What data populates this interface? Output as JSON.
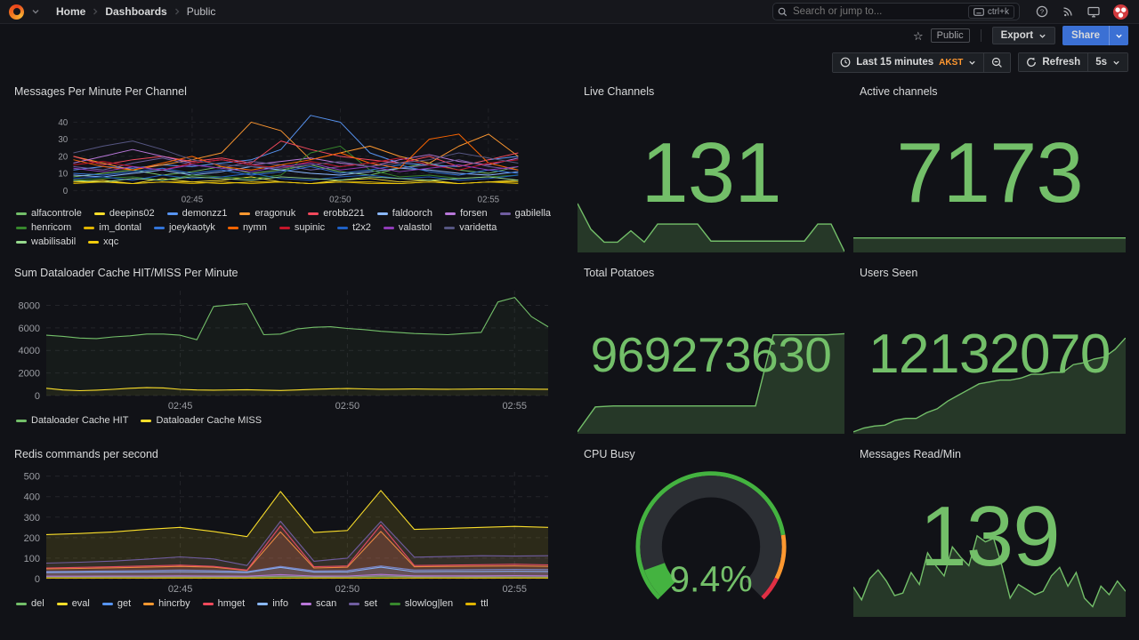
{
  "nav": {
    "breadcrumb": [
      "Home",
      "Dashboards",
      "Public"
    ],
    "search_placeholder": "Search or jump to...",
    "search_shortcut": "ctrl+k"
  },
  "toolbar": {
    "visibility_badge": "Public",
    "export_label": "Export",
    "share_label": "Share"
  },
  "time": {
    "range_label": "Last 15 minutes",
    "timezone": "AKST",
    "refresh_label": "Refresh",
    "interval": "5s"
  },
  "colors": {
    "accent_green": "#73BF69",
    "grid": "rgba(204,204,220,0.10)",
    "axis_text": "#9b9da3"
  },
  "charts": {
    "messages": {
      "type": "line",
      "title": "Messages Per Minute Per Channel",
      "ymax": 48,
      "yticks": [
        0,
        10,
        20,
        30,
        40
      ],
      "fill_opacity": 0,
      "xticks": [
        {
          "f": 0.267,
          "label": "02:45"
        },
        {
          "f": 0.6,
          "label": "02:50"
        },
        {
          "f": 0.933,
          "label": "02:55"
        }
      ],
      "series": [
        {
          "name": "alfacontrole",
          "color": "#73BF69",
          "values": [
            8,
            10,
            12,
            9,
            11,
            14,
            10,
            12,
            15,
            11,
            9,
            13,
            16,
            12,
            10,
            14
          ]
        },
        {
          "name": "deepins02",
          "color": "#FADE2A",
          "values": [
            5,
            6,
            4,
            7,
            5,
            6,
            8,
            5,
            4,
            6,
            7,
            5,
            6,
            4,
            5,
            6
          ]
        },
        {
          "name": "demonzz1",
          "color": "#5794F2",
          "values": [
            12,
            14,
            13,
            15,
            14,
            16,
            18,
            24,
            44,
            40,
            22,
            16,
            15,
            14,
            18,
            20
          ]
        },
        {
          "name": "eragonuk",
          "color": "#FF9830",
          "values": [
            20,
            16,
            12,
            15,
            18,
            22,
            40,
            35,
            18,
            22,
            26,
            20,
            16,
            26,
            33,
            20
          ]
        },
        {
          "name": "erobb221",
          "color": "#F2495C",
          "values": [
            20,
            15,
            18,
            20,
            17,
            19,
            16,
            29,
            24,
            20,
            18,
            16,
            20,
            14,
            18,
            22
          ]
        },
        {
          "name": "faldoorch",
          "color": "#8AB8FF",
          "values": [
            9,
            8,
            10,
            12,
            9,
            11,
            14,
            12,
            10,
            9,
            11,
            13,
            12,
            10,
            9,
            11
          ]
        },
        {
          "name": "forsen",
          "color": "#B877D9",
          "values": [
            16,
            20,
            24,
            20,
            16,
            18,
            15,
            17,
            19,
            16,
            14,
            18,
            21,
            17,
            15,
            19
          ]
        },
        {
          "name": "gabilella",
          "color": "#705DA0",
          "values": [
            14,
            12,
            16,
            19,
            15,
            13,
            17,
            15,
            12,
            14,
            16,
            13,
            15,
            18,
            14,
            12
          ]
        },
        {
          "name": "henricom",
          "color": "#37872D",
          "values": [
            6,
            7,
            8,
            6,
            9,
            8,
            7,
            9,
            22,
            26,
            12,
            8,
            9,
            7,
            8,
            9
          ]
        },
        {
          "name": "im_dontal",
          "color": "#E0B400",
          "values": [
            4,
            5,
            4,
            5,
            4,
            5,
            4,
            5,
            4,
            5,
            4,
            4,
            5,
            4,
            5,
            4
          ]
        },
        {
          "name": "joeykaotyk",
          "color": "#3274D9",
          "values": [
            10,
            9,
            11,
            13,
            10,
            12,
            9,
            11,
            14,
            10,
            12,
            15,
            11,
            9,
            12,
            10
          ]
        },
        {
          "name": "nymn",
          "color": "#FA6400",
          "values": [
            18,
            14,
            12,
            16,
            20,
            14,
            12,
            15,
            18,
            22,
            16,
            13,
            30,
            33,
            16,
            12
          ]
        },
        {
          "name": "supinic",
          "color": "#C4162A",
          "values": [
            15,
            17,
            14,
            12,
            16,
            18,
            15,
            13,
            17,
            14,
            16,
            19,
            15,
            12,
            16,
            18
          ]
        },
        {
          "name": "t2x2",
          "color": "#1F60C4",
          "values": [
            7,
            8,
            6,
            9,
            7,
            8,
            10,
            7,
            6,
            8,
            9,
            7,
            8,
            6,
            7,
            9
          ]
        },
        {
          "name": "valastol",
          "color": "#8F3BB8",
          "values": [
            13,
            11,
            14,
            12,
            15,
            13,
            11,
            14,
            16,
            12,
            14,
            11,
            13,
            15,
            12,
            14
          ]
        },
        {
          "name": "varidetta",
          "color": "#565682",
          "values": [
            22,
            26,
            29,
            24,
            18,
            15,
            14,
            13,
            15,
            17,
            14,
            16,
            18,
            22,
            19,
            16
          ]
        },
        {
          "name": "wabilisabil",
          "color": "#96D98D",
          "values": [
            6,
            5,
            7,
            6,
            8,
            7,
            6,
            8,
            7,
            6,
            8,
            7,
            6,
            7,
            8,
            6
          ]
        },
        {
          "name": "xqc",
          "color": "#F2CC0C",
          "values": [
            5,
            5,
            4,
            5,
            5,
            4,
            5,
            5,
            4,
            5,
            5,
            4,
            5,
            4,
            5,
            5
          ]
        }
      ]
    },
    "dataloader": {
      "type": "line",
      "title": "Sum Dataloader Cache HIT/MISS Per Minute",
      "ymax": 9300,
      "yticks": [
        0,
        2000,
        4000,
        6000,
        8000
      ],
      "fill_opacity": 0.05,
      "xticks": [
        {
          "f": 0.267,
          "label": "02:45"
        },
        {
          "f": 0.6,
          "label": "02:50"
        },
        {
          "f": 0.933,
          "label": "02:55"
        }
      ],
      "series": [
        {
          "name": "Dataloader Cache HIT",
          "color": "#73BF69",
          "values": [
            5350,
            5250,
            5100,
            5050,
            5200,
            5300,
            5450,
            5450,
            5350,
            4950,
            7900,
            8050,
            8150,
            5400,
            5450,
            5900,
            6050,
            6100,
            5950,
            5850,
            5700,
            5600,
            5500,
            5450,
            5400,
            5500,
            5600,
            8300,
            8700,
            7000,
            6100
          ]
        },
        {
          "name": "Dataloader Cache MISS",
          "color": "#FADE2A",
          "values": [
            650,
            500,
            430,
            480,
            550,
            650,
            700,
            680,
            550,
            500,
            480,
            500,
            520,
            480,
            450,
            500,
            560,
            600,
            620,
            590,
            560,
            570,
            580,
            570,
            560,
            570,
            580,
            590,
            580,
            570,
            560
          ]
        }
      ]
    },
    "redis": {
      "type": "line",
      "title": "Redis commands per second",
      "ymax": 520,
      "yticks": [
        0,
        100,
        200,
        300,
        400,
        500
      ],
      "fill_opacity": 0.12,
      "xticks": [
        {
          "f": 0.267,
          "label": "02:45"
        },
        {
          "f": 0.6,
          "label": "02:50"
        },
        {
          "f": 0.933,
          "label": "02:55"
        }
      ],
      "series": [
        {
          "name": "del",
          "color": "#73BF69",
          "values": [
            8,
            8,
            9,
            8,
            9,
            9,
            8,
            12,
            9,
            8,
            14,
            9,
            8,
            9,
            9,
            8
          ]
        },
        {
          "name": "eval",
          "color": "#FADE2A",
          "values": [
            215,
            220,
            228,
            240,
            250,
            230,
            205,
            425,
            225,
            235,
            430,
            240,
            245,
            250,
            255,
            250
          ]
        },
        {
          "name": "get",
          "color": "#5794F2",
          "values": [
            35,
            36,
            38,
            40,
            42,
            40,
            34,
            60,
            38,
            40,
            62,
            42,
            43,
            44,
            45,
            44
          ]
        },
        {
          "name": "hincrby",
          "color": "#FF9830",
          "values": [
            48,
            50,
            53,
            56,
            60,
            56,
            40,
            228,
            52,
            56,
            230,
            58,
            60,
            61,
            62,
            60
          ]
        },
        {
          "name": "hmget",
          "color": "#F2495C",
          "values": [
            52,
            55,
            58,
            62,
            66,
            60,
            42,
            258,
            58,
            62,
            262,
            64,
            66,
            68,
            70,
            67
          ]
        },
        {
          "name": "info",
          "color": "#8AB8FF",
          "values": [
            30,
            31,
            32,
            33,
            34,
            33,
            30,
            55,
            32,
            33,
            56,
            34,
            35,
            35,
            36,
            35
          ]
        },
        {
          "name": "scan",
          "color": "#B877D9",
          "values": [
            12,
            12,
            13,
            13,
            14,
            13,
            12,
            20,
            13,
            13,
            21,
            14,
            14,
            14,
            15,
            14
          ]
        },
        {
          "name": "set",
          "color": "#705DA0",
          "values": [
            76,
            80,
            86,
            95,
            106,
            96,
            64,
            280,
            85,
            100,
            278,
            105,
            108,
            112,
            110,
            112
          ]
        },
        {
          "name": "slowlog|len",
          "color": "#37872D",
          "values": [
            4,
            4,
            4,
            4,
            4,
            4,
            4,
            6,
            4,
            4,
            6,
            4,
            4,
            4,
            4,
            4
          ]
        },
        {
          "name": "ttl",
          "color": "#E0B400",
          "values": [
            3,
            3,
            3,
            3,
            3,
            3,
            3,
            3,
            3,
            3,
            3,
            3,
            3,
            3,
            3,
            3
          ]
        }
      ]
    }
  },
  "stats": {
    "live_channels": {
      "title": "Live Channels",
      "value": "131",
      "spark": [
        95,
        45,
        20,
        20,
        42,
        20,
        55,
        55,
        55,
        55,
        22,
        22,
        22,
        22,
        22,
        22,
        22,
        22,
        55,
        55,
        2
      ]
    },
    "active_channels": {
      "title": "Active channels",
      "value": "7173",
      "spark": [
        48,
        48,
        48,
        48,
        48,
        48
      ]
    },
    "total_potatoes": {
      "title": "Total Potatoes",
      "value": "969273630",
      "spark": [
        2,
        26,
        27,
        27,
        27,
        27,
        27,
        27,
        27,
        27,
        27,
        96,
        96,
        96,
        96,
        97
      ]
    },
    "users_seen": {
      "title": "Users Seen",
      "value": "12132070",
      "spark": [
        2,
        6,
        8,
        9,
        14,
        16,
        16,
        22,
        26,
        34,
        40,
        46,
        52,
        54,
        56,
        56,
        58,
        62,
        62,
        64,
        64,
        72,
        74,
        78,
        80,
        88,
        100
      ]
    },
    "messages_read": {
      "title": "Messages Read/Min",
      "value": "139",
      "spark": [
        35,
        20,
        45,
        55,
        42,
        25,
        28,
        52,
        38,
        75,
        60,
        48,
        82,
        70,
        60,
        95,
        88,
        92,
        60,
        22,
        38,
        32,
        26,
        30,
        48,
        58,
        36,
        52,
        22,
        12,
        36,
        26,
        42,
        30
      ]
    }
  },
  "gauge": {
    "title": "CPU Busy",
    "value": "9.4%",
    "percent": 9.4,
    "min": 0,
    "max": 100,
    "track_color": "#2c2f34",
    "text_color": "#73BF69",
    "thresholds": [
      {
        "from": 0,
        "to": 0.8,
        "color": "#44B340"
      },
      {
        "from": 0.8,
        "to": 0.93,
        "color": "#FF9830"
      },
      {
        "from": 0.93,
        "to": 1,
        "color": "#E02F44"
      }
    ]
  }
}
